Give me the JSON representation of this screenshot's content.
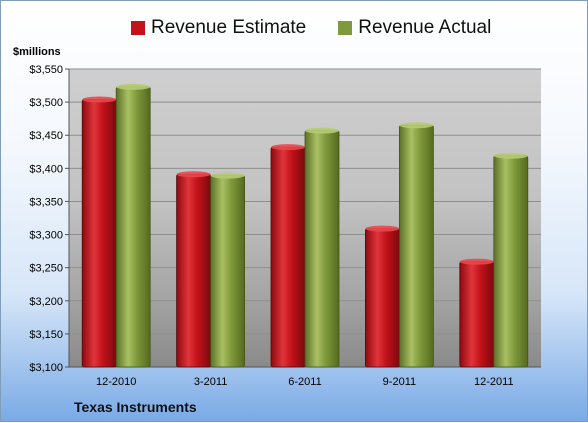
{
  "chart_data": {
    "type": "bar",
    "ylabel": "$millions",
    "footer": "Texas Instruments",
    "categories": [
      "12-2010",
      "3-2011",
      "6-2011",
      "9-2011",
      "12-2011"
    ],
    "series": [
      {
        "name": "Revenue Estimate",
        "values": [
          3504,
          3391,
          3432,
          3309,
          3259
        ],
        "color": "#c4121a"
      },
      {
        "name": "Revenue Actual",
        "values": [
          3523,
          3389,
          3457,
          3465,
          3419
        ],
        "color": "#7f9a3c"
      }
    ],
    "ylim": [
      3100,
      3550
    ],
    "yticks": [
      3100,
      3150,
      3200,
      3250,
      3300,
      3350,
      3400,
      3450,
      3500,
      3550
    ],
    "ytick_labels": [
      "$3,100",
      "$3,150",
      "$3,200",
      "$3,250",
      "$3,300",
      "$3,350",
      "$3,400",
      "$3,450",
      "$3,500",
      "$3,550"
    ],
    "grid": true,
    "legend_position": "top"
  }
}
